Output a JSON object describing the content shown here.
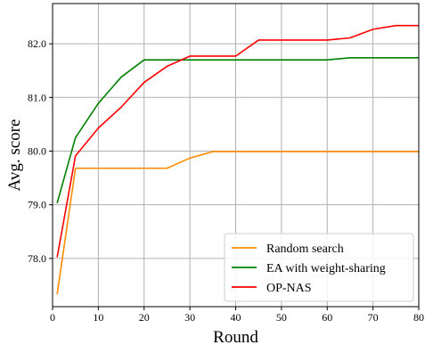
{
  "chart_data": {
    "type": "line",
    "title": "",
    "xlabel": "Round",
    "ylabel": "Avg. score",
    "xlim": [
      0,
      80
    ],
    "ylim": [
      77.1,
      82.75
    ],
    "xticks": [
      0,
      10,
      20,
      30,
      40,
      50,
      60,
      70,
      80
    ],
    "yticks": [
      78.0,
      79.0,
      80.0,
      81.0,
      82.0
    ],
    "xtick_labels": [
      "0",
      "10",
      "20",
      "30",
      "40",
      "50",
      "60",
      "70",
      "80"
    ],
    "ytick_labels": [
      "78.0",
      "79.0",
      "80.0",
      "81.0",
      "82.0"
    ],
    "grid": true,
    "legend_position": "bottom-right",
    "series": [
      {
        "name": "Random search",
        "color": "#ff8c00",
        "x": [
          1,
          5,
          10,
          15,
          20,
          25,
          30,
          35,
          40,
          50,
          60,
          70,
          80
        ],
        "y": [
          77.33,
          79.68,
          79.68,
          79.68,
          79.68,
          79.68,
          79.87,
          79.99,
          79.99,
          79.99,
          79.99,
          79.99,
          79.99
        ]
      },
      {
        "name": "EA with weight-sharing",
        "color": "#008000",
        "x": [
          1,
          5,
          10,
          15,
          20,
          25,
          30,
          40,
          50,
          60,
          65,
          70,
          80
        ],
        "y": [
          79.03,
          80.25,
          80.89,
          81.38,
          81.7,
          81.7,
          81.7,
          81.7,
          81.7,
          81.7,
          81.74,
          81.74,
          81.74
        ]
      },
      {
        "name": "OP-NAS",
        "color": "#ff0000",
        "x": [
          1,
          5,
          10,
          15,
          20,
          25,
          30,
          35,
          40,
          45,
          50,
          55,
          60,
          65,
          70,
          75,
          80
        ],
        "y": [
          78.02,
          79.91,
          80.43,
          80.82,
          81.28,
          81.58,
          81.77,
          81.77,
          81.77,
          82.07,
          82.07,
          82.07,
          82.07,
          82.11,
          82.27,
          82.34,
          82.34
        ]
      }
    ]
  }
}
